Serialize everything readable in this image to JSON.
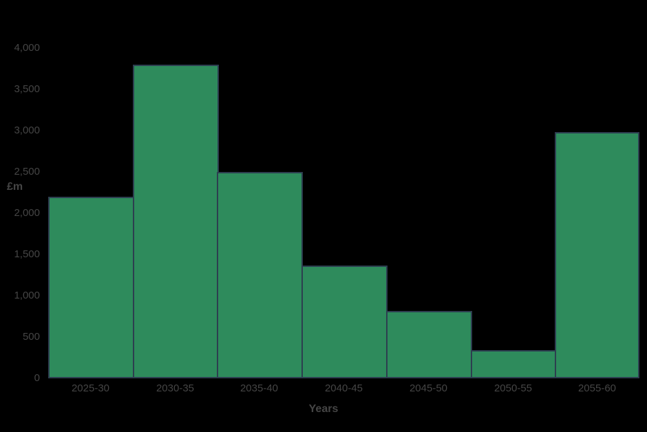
{
  "chart_data": {
    "type": "bar",
    "title": "",
    "categories": [
      "2025-30",
      "2030-35",
      "2035-40",
      "2040-45",
      "2045-50",
      "2050-55",
      "2055-60"
    ],
    "values": [
      2200,
      3800,
      2500,
      1370,
      820,
      340,
      2980
    ],
    "xlabel": "Years",
    "ylabel": "£m",
    "ylim": [
      0,
      4000
    ],
    "ytick_step": 500,
    "ytick_labels": [
      "0",
      "500",
      "1,000",
      "1,500",
      "2,000",
      "2,500",
      "3,000",
      "3,500",
      "4,000"
    ],
    "grid": false,
    "legend": false
  },
  "colors": {
    "background": "#000000",
    "bar_fill": "#2e8b5c",
    "bar_border": "#2d3e50",
    "text": "#454545"
  }
}
